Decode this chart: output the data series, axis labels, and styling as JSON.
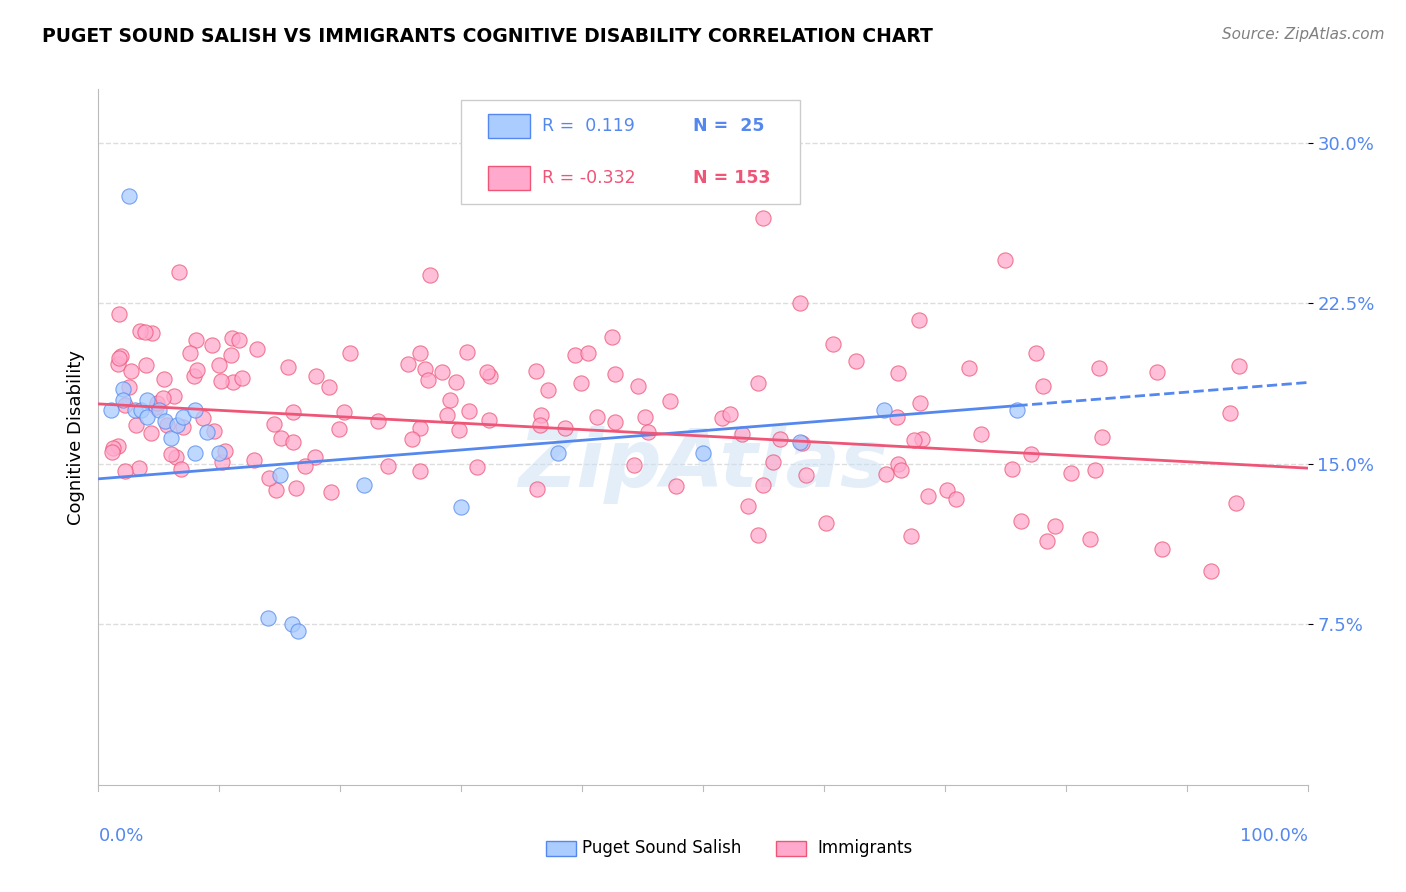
{
  "title": "PUGET SOUND SALISH VS IMMIGRANTS COGNITIVE DISABILITY CORRELATION CHART",
  "source": "Source: ZipAtlas.com",
  "ylabel": "Cognitive Disability",
  "ylim": [
    0.0,
    0.325
  ],
  "xlim": [
    0.0,
    1.0
  ],
  "yticks": [
    0.075,
    0.15,
    0.225,
    0.3
  ],
  "ytick_labels": [
    "7.5%",
    "15.0%",
    "22.5%",
    "30.0%"
  ],
  "grid_color": "#dddddd",
  "background_color": "#ffffff",
  "blue_color": "#5588ee",
  "blue_fill": "#aaccff",
  "pink_color": "#ee5577",
  "pink_fill": "#ffaacc",
  "blue_r": 0.119,
  "blue_n": 25,
  "pink_r": -0.332,
  "pink_n": 153,
  "blue_line_start_y": 0.143,
  "blue_line_end_y": 0.188,
  "blue_line_x_max_solid": 0.76,
  "pink_line_start_y": 0.178,
  "pink_line_end_y": 0.148
}
